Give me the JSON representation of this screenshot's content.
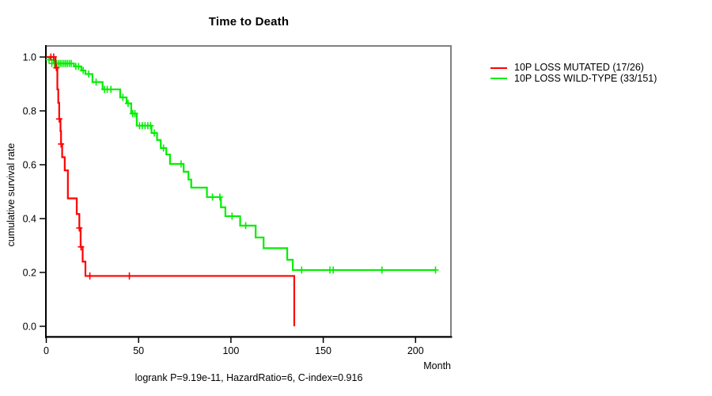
{
  "chart_data": {
    "type": "line",
    "subtype": "kaplan-meier-step",
    "title": "Time to Death",
    "xlabel": "Month",
    "ylabel": "cumulative survival rate",
    "annotation": "logrank P=9.19e-11, HazardRatio=6, C-index=0.916",
    "xlim": [
      0,
      220
    ],
    "ylim": [
      0.0,
      1.0
    ],
    "grid": false,
    "legend_position": "right-outside",
    "x_ticks": [
      {
        "v": 0,
        "label": "0"
      },
      {
        "v": 50,
        "label": "50"
      },
      {
        "v": 100,
        "label": "100"
      },
      {
        "v": 150,
        "label": "150"
      },
      {
        "v": 200,
        "label": "200"
      }
    ],
    "y_ticks": [
      {
        "v": 1.0,
        "label": "1.0"
      },
      {
        "v": 0.8,
        "label": "0.8"
      },
      {
        "v": 0.6,
        "label": "0.6"
      },
      {
        "v": 0.4,
        "label": "0.4"
      },
      {
        "v": 0.2,
        "label": "0.2"
      },
      {
        "v": 0.0,
        "label": "0.0"
      }
    ],
    "series": [
      {
        "name": "wild-type",
        "label": "10P LOSS WILD-TYPE (33/151)",
        "color": "#00ee00",
        "start": [
          0,
          1.0
        ],
        "end_time": 211,
        "steps": [
          [
            2,
            0.99
          ],
          [
            4,
            0.976
          ],
          [
            15,
            0.965
          ],
          [
            19,
            0.95
          ],
          [
            21.2,
            0.937
          ],
          [
            25,
            0.907
          ],
          [
            30.5,
            0.88
          ],
          [
            40,
            0.85
          ],
          [
            43.5,
            0.828
          ],
          [
            46,
            0.79
          ],
          [
            49,
            0.745
          ],
          [
            57,
            0.718
          ],
          [
            60,
            0.692
          ],
          [
            62,
            0.662
          ],
          [
            65,
            0.638
          ],
          [
            67,
            0.603
          ],
          [
            74.4,
            0.574
          ],
          [
            77,
            0.545
          ],
          [
            78.5,
            0.515
          ],
          [
            87,
            0.48
          ],
          [
            94.6,
            0.442
          ],
          [
            97,
            0.409
          ],
          [
            105,
            0.374
          ],
          [
            113.4,
            0.33
          ],
          [
            117.7,
            0.29
          ],
          [
            130.5,
            0.247
          ],
          [
            133.5,
            0.209
          ]
        ],
        "censors": [
          [
            1.5,
            0.99
          ],
          [
            3,
            0.976
          ],
          [
            4.5,
            0.976
          ],
          [
            5.5,
            0.976
          ],
          [
            6.5,
            0.976
          ],
          [
            7.5,
            0.976
          ],
          [
            8.5,
            0.976
          ],
          [
            9.5,
            0.976
          ],
          [
            10.5,
            0.976
          ],
          [
            11.5,
            0.976
          ],
          [
            12.5,
            0.976
          ],
          [
            13.5,
            0.976
          ],
          [
            16,
            0.965
          ],
          [
            17.5,
            0.965
          ],
          [
            20,
            0.95
          ],
          [
            23,
            0.937
          ],
          [
            27,
            0.907
          ],
          [
            31.5,
            0.88
          ],
          [
            33,
            0.88
          ],
          [
            35,
            0.88
          ],
          [
            41.5,
            0.85
          ],
          [
            44.3,
            0.828
          ],
          [
            46.8,
            0.79
          ],
          [
            48,
            0.79
          ],
          [
            50.5,
            0.745
          ],
          [
            52,
            0.745
          ],
          [
            53.5,
            0.745
          ],
          [
            55,
            0.745
          ],
          [
            56.5,
            0.745
          ],
          [
            58.5,
            0.718
          ],
          [
            63.5,
            0.662
          ],
          [
            73,
            0.603
          ],
          [
            90,
            0.48
          ],
          [
            94,
            0.48
          ],
          [
            100.6,
            0.409
          ],
          [
            108,
            0.374
          ],
          [
            138.3,
            0.209
          ],
          [
            153.6,
            0.209
          ],
          [
            155.4,
            0.209
          ],
          [
            181.8,
            0.209
          ],
          [
            210.8,
            0.209
          ]
        ]
      },
      {
        "name": "mutated",
        "label": "10P LOSS MUTATED (17/26)",
        "color": "#ff0000",
        "start": [
          0,
          1.0
        ],
        "end_time": 134.3,
        "steps": [
          [
            5,
            0.96
          ],
          [
            6,
            0.88
          ],
          [
            6.5,
            0.83
          ],
          [
            7,
            0.77
          ],
          [
            7.7,
            0.725
          ],
          [
            8,
            0.677
          ],
          [
            8.6,
            0.628
          ],
          [
            10,
            0.579
          ],
          [
            11.7,
            0.475
          ],
          [
            16.5,
            0.417
          ],
          [
            17.9,
            0.365
          ],
          [
            18.6,
            0.295
          ],
          [
            19.7,
            0.24
          ],
          [
            21.2,
            0.187
          ],
          [
            134.3,
            0.0
          ]
        ],
        "censors": [
          [
            2.5,
            1.0
          ],
          [
            4,
            1.0
          ],
          [
            5.5,
            0.96
          ],
          [
            7,
            0.77
          ],
          [
            8,
            0.677
          ],
          [
            17.9,
            0.365
          ],
          [
            18.8,
            0.295
          ],
          [
            23.6,
            0.187
          ],
          [
            45,
            0.187
          ]
        ]
      }
    ],
    "legend_order": [
      "mutated",
      "wild-type"
    ]
  },
  "colors": {
    "frame": "#808080",
    "axis": "#000000",
    "background": "#ffffff"
  }
}
